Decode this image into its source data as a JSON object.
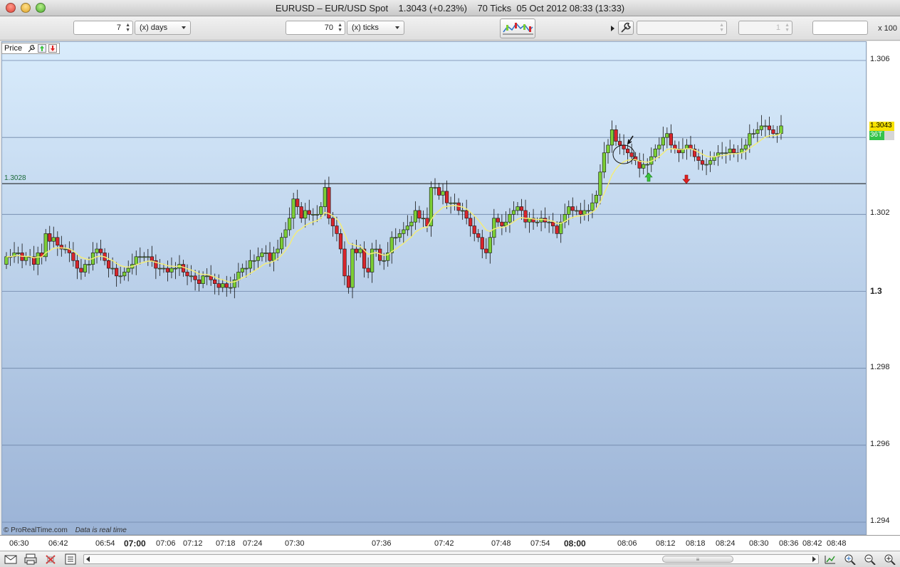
{
  "window": {
    "title": "EURUSD – EUR/USD Spot    1.3043 (+0.23%)    70 Ticks  05 Oct 2012 08:33 (13:33)"
  },
  "toolbar": {
    "days_value": "7",
    "days_unit": "(x) days",
    "ticks_value": "70",
    "ticks_unit": "(x) ticks",
    "field_a": "",
    "field_b": "1",
    "field_c": "",
    "multiplier": "x 100"
  },
  "chart": {
    "price_label": "Price",
    "ref_line_label": "1.3028",
    "current_price": "1.3043",
    "timer": "36T",
    "source": "© ProRealTime.com",
    "realtime": "Data is real time",
    "colors": {
      "up": "#7ccf35",
      "down": "#d8262c",
      "ma": "#f2ec7a",
      "bg_top": "#d9ecfc",
      "bg_bottom": "#9bb3d6"
    }
  },
  "chart_data": {
    "type": "line",
    "ylim": [
      1.2935,
      1.3065
    ],
    "yticks": [
      {
        "label": "1.306",
        "value": 1.306,
        "bold": false
      },
      {
        "label": "1.302",
        "value": 1.302,
        "bold": false
      },
      {
        "label": "1.3",
        "value": 1.3,
        "bold": true
      },
      {
        "label": "1.298",
        "value": 1.298,
        "bold": false
      },
      {
        "label": "1.296",
        "value": 1.296,
        "bold": false
      },
      {
        "label": "1.294",
        "value": 1.294,
        "bold": false
      }
    ],
    "reference_line": 1.3028,
    "xticks": [
      {
        "label": "06:30",
        "bold": false
      },
      {
        "label": "06:42",
        "bold": false
      },
      {
        "label": "06:54",
        "bold": false
      },
      {
        "label": "07:00",
        "bold": true
      },
      {
        "label": "07:06",
        "bold": false
      },
      {
        "label": "07:12",
        "bold": false
      },
      {
        "label": "07:18",
        "bold": false
      },
      {
        "label": "07:24",
        "bold": false
      },
      {
        "label": "07:30",
        "bold": false
      },
      {
        "label": "07:36",
        "bold": false
      },
      {
        "label": "07:42",
        "bold": false
      },
      {
        "label": "07:48",
        "bold": false
      },
      {
        "label": "07:54",
        "bold": false
      },
      {
        "label": "08:00",
        "bold": true
      },
      {
        "label": "08:06",
        "bold": false
      },
      {
        "label": "08:12",
        "bold": false
      },
      {
        "label": "08:18",
        "bold": false
      },
      {
        "label": "08:24",
        "bold": false
      },
      {
        "label": "08:30",
        "bold": false
      },
      {
        "label": "08:36",
        "bold": false
      },
      {
        "label": "08:42",
        "bold": false
      },
      {
        "label": "08:48",
        "bold": false
      }
    ],
    "series": [
      {
        "values": [
          1.3009,
          1.3009,
          1.301,
          1.301,
          1.3008,
          1.3009,
          1.3009,
          1.3007,
          1.301,
          1.3009,
          1.3015,
          1.3013,
          1.3014,
          1.3012,
          1.3011,
          1.3011,
          1.301,
          1.3008,
          1.3006,
          1.3005,
          1.3007,
          1.3007,
          1.301,
          1.3011,
          1.301,
          1.3008,
          1.3006,
          1.3006,
          1.3004,
          1.3004,
          1.3005,
          1.3006,
          1.3007,
          1.3009,
          1.3009,
          1.3009,
          1.3009,
          1.3008,
          1.3006,
          1.3006,
          1.3006,
          1.3005,
          1.3006,
          1.3006,
          1.3007,
          1.3005,
          1.3004,
          1.3004,
          1.3003,
          1.3002,
          1.3004,
          1.3004,
          1.3003,
          1.3002,
          1.3001,
          1.3002,
          1.3001,
          1.3001,
          1.3003,
          1.3005,
          1.3006,
          1.3006,
          1.3008,
          1.3008,
          1.3009,
          1.301,
          1.301,
          1.3008,
          1.301,
          1.3011,
          1.3014,
          1.3016,
          1.3019,
          1.3024,
          1.3022,
          1.3019,
          1.3021,
          1.302,
          1.302,
          1.302,
          1.3022,
          1.3027,
          1.3019,
          1.3017,
          1.3015,
          1.3011,
          1.3004,
          1.3001,
          1.3011,
          1.301,
          1.3011,
          1.3006,
          1.3005,
          1.3011,
          1.3011,
          1.3008,
          1.3008,
          1.301,
          1.3014,
          1.3014,
          1.3015,
          1.3016,
          1.3017,
          1.3018,
          1.3021,
          1.3019,
          1.3019,
          1.3017,
          1.3027,
          1.3027,
          1.3025,
          1.3026,
          1.3023,
          1.3023,
          1.3023,
          1.3021,
          1.3021,
          1.3019,
          1.3017,
          1.3015,
          1.3014,
          1.3011,
          1.301,
          1.3014,
          1.3019,
          1.3018,
          1.3017,
          1.3018,
          1.302,
          1.3021,
          1.3022,
          1.3021,
          1.3018,
          1.3019,
          1.3018,
          1.3018,
          1.3019,
          1.3018,
          1.3018,
          1.3017,
          1.3015,
          1.3018,
          1.302,
          1.3022,
          1.3021,
          1.3021,
          1.302,
          1.3021,
          1.3021,
          1.3023,
          1.3025,
          1.3031,
          1.3036,
          1.3038,
          1.3042,
          1.3039,
          1.3038,
          1.3037,
          1.3036,
          1.3035,
          1.3034,
          1.3032,
          1.3033,
          1.3033,
          1.3035,
          1.3037,
          1.3038,
          1.304,
          1.3041,
          1.3038,
          1.3037,
          1.3036,
          1.3037,
          1.3038,
          1.3037,
          1.3035,
          1.3034,
          1.3033,
          1.3033,
          1.3034,
          1.3035,
          1.3036,
          1.3036,
          1.3036,
          1.3037,
          1.3036,
          1.3036,
          1.3037,
          1.3038,
          1.3041,
          1.3041,
          1.3042,
          1.3043,
          1.3043,
          1.3042,
          1.3041,
          1.3041,
          1.3043
        ]
      }
    ]
  }
}
